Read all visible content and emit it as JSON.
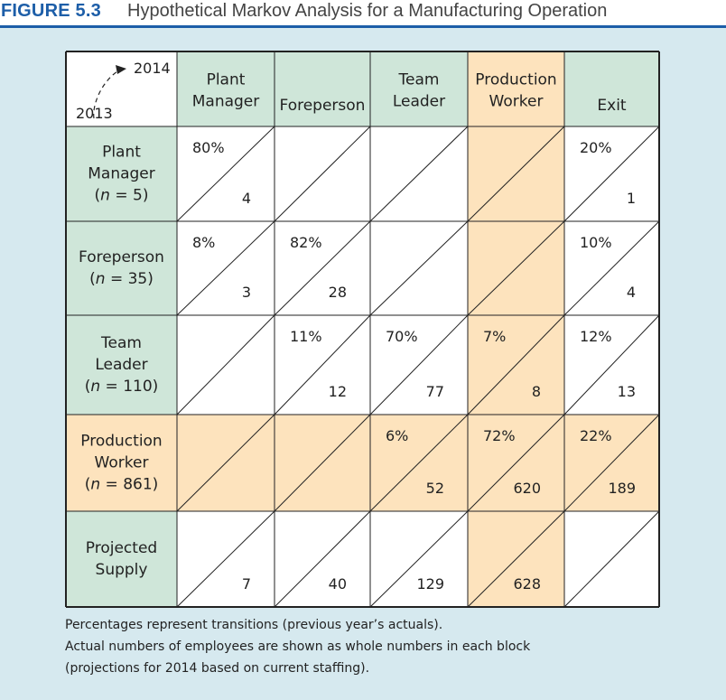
{
  "figure": {
    "label": "FIGURE 5.3",
    "title": "Hypothetical Markov Analysis for a Manufacturing Operation"
  },
  "corner": {
    "to_year": "2014",
    "from_year": "2013"
  },
  "columns": [
    {
      "lines": [
        "Plant",
        "Manager"
      ]
    },
    {
      "lines": [
        "Foreperson"
      ]
    },
    {
      "lines": [
        "Team",
        "Leader"
      ]
    },
    {
      "lines": [
        "Production",
        "Worker"
      ]
    },
    {
      "lines": [
        "Exit"
      ]
    }
  ],
  "rows": [
    {
      "lines": [
        "Plant",
        "Manager",
        "(n = 5)"
      ],
      "cells": [
        {
          "pct": "80%",
          "num": "4"
        },
        {
          "pct": "",
          "num": ""
        },
        {
          "pct": "",
          "num": ""
        },
        {
          "pct": "",
          "num": ""
        },
        {
          "pct": "20%",
          "num": "1"
        }
      ]
    },
    {
      "lines": [
        "Foreperson",
        "(n = 35)"
      ],
      "cells": [
        {
          "pct": "8%",
          "num": "3"
        },
        {
          "pct": "82%",
          "num": "28"
        },
        {
          "pct": "",
          "num": ""
        },
        {
          "pct": "",
          "num": ""
        },
        {
          "pct": "10%",
          "num": "4"
        }
      ]
    },
    {
      "lines": [
        "Team",
        "Leader",
        "(n = 110)"
      ],
      "cells": [
        {
          "pct": "",
          "num": ""
        },
        {
          "pct": "11%",
          "num": "12"
        },
        {
          "pct": "70%",
          "num": "77"
        },
        {
          "pct": "7%",
          "num": "8"
        },
        {
          "pct": "12%",
          "num": "13"
        }
      ]
    },
    {
      "lines": [
        "Production",
        "Worker",
        "(n = 861)"
      ],
      "cells": [
        {
          "pct": "",
          "num": ""
        },
        {
          "pct": "",
          "num": ""
        },
        {
          "pct": "6%",
          "num": "52"
        },
        {
          "pct": "72%",
          "num": "620"
        },
        {
          "pct": "22%",
          "num": "189"
        }
      ]
    },
    {
      "lines": [
        "Projected",
        "Supply"
      ],
      "cells": [
        {
          "pct": "",
          "num": "7"
        },
        {
          "pct": "",
          "num": "40"
        },
        {
          "pct": "",
          "num": "129"
        },
        {
          "pct": "",
          "num": "628"
        },
        {
          "pct": "",
          "num": ""
        }
      ]
    }
  ],
  "notes": [
    "Percentages represent transitions (previous year’s actuals).",
    "Actual numbers of employees are shown as whole numbers in each block",
    "(projections for 2014 based on current staffing)."
  ],
  "colors": {
    "header_green": "#cfe6d9",
    "highlight_orange": "#fde3bd",
    "cell_white": "#ffffff",
    "panel_blue": "#d6e9ef",
    "title_blue": "#1d5ea8"
  }
}
